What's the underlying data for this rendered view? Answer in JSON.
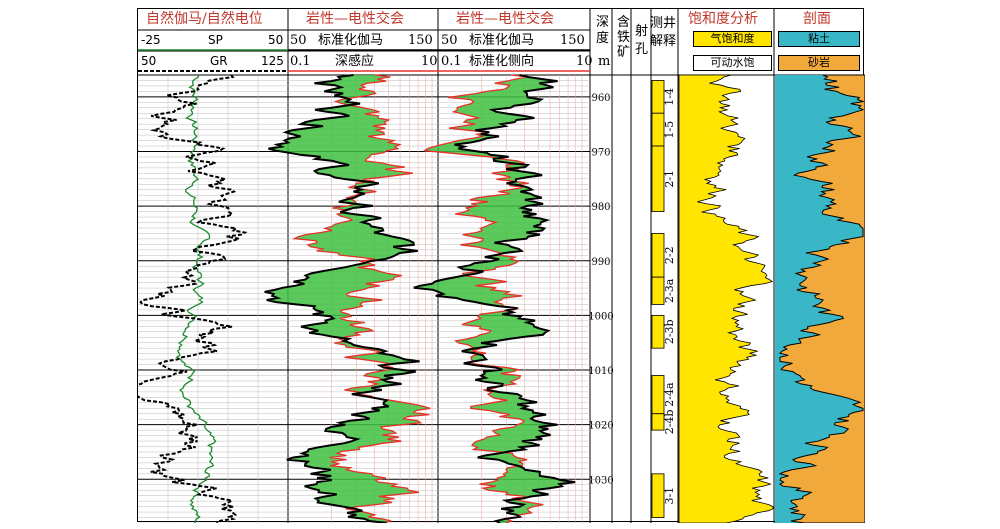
{
  "headers": {
    "col1_title": "自然伽马/自然电位",
    "col1_sp_min": "-25",
    "col1_sp_name": "SP",
    "col1_sp_max": "50",
    "col1_gr_min": "50",
    "col1_gr_name": "GR",
    "col1_gr_max": "125",
    "col2_title": "岩性—电性交会",
    "col2_a_min": "50",
    "col2_a_name": "标准化伽马",
    "col2_a_max": "150",
    "col2_b_min": "0.1",
    "col2_b_name": "深感应",
    "col2_b_max": "10",
    "col3_title": "岩性—电性交会",
    "col3_a_min": "50",
    "col3_a_name": "标准化伽马",
    "col3_a_max": "150",
    "col3_b_min": "0.1",
    "col3_b_name": "标准化侧向",
    "col3_b_max": "10",
    "depth_title": "深度",
    "depth_unit": "m",
    "mineral_title": "含铁矿",
    "perf_title": "射孔",
    "interp_title": "测井解释",
    "sat_title": "饱和度分析",
    "sat_gas": "气饱和度",
    "sat_water": "可动水饱",
    "profile_title": "剖面",
    "profile_clay": "粘土",
    "profile_sand": "砂岩"
  },
  "colors": {
    "title": "#c0392b",
    "sp": "#1e8a2e",
    "gr": "#000000",
    "fill_green": "#3fbf3f",
    "red": "#e8302a",
    "yellow": "#ffe500",
    "teal": "#39b7c7",
    "sand": "#f2a93b"
  },
  "chart_data": {
    "type": "well-log",
    "depth_range": [
      956,
      1038
    ],
    "depth_ticks": [
      "960",
      "970",
      "980",
      "990",
      "1000",
      "1010",
      "1020",
      "1030"
    ],
    "zones": [
      {
        "label": "1-4",
        "top": 957,
        "bottom": 963
      },
      {
        "label": "1-5",
        "top": 963,
        "bottom": 969
      },
      {
        "label": "2-1",
        "top": 969,
        "bottom": 981
      },
      {
        "label": "2-2",
        "top": 985,
        "bottom": 993
      },
      {
        "label": "2-3a",
        "top": 993,
        "bottom": 998
      },
      {
        "label": "2-3b",
        "top": 1000,
        "bottom": 1006
      },
      {
        "label": "2-4a",
        "top": 1011,
        "bottom": 1018
      },
      {
        "label": "2-4b",
        "top": 1018,
        "bottom": 1021
      },
      {
        "label": "3-1",
        "top": 1029,
        "bottom": 1037
      }
    ]
  }
}
